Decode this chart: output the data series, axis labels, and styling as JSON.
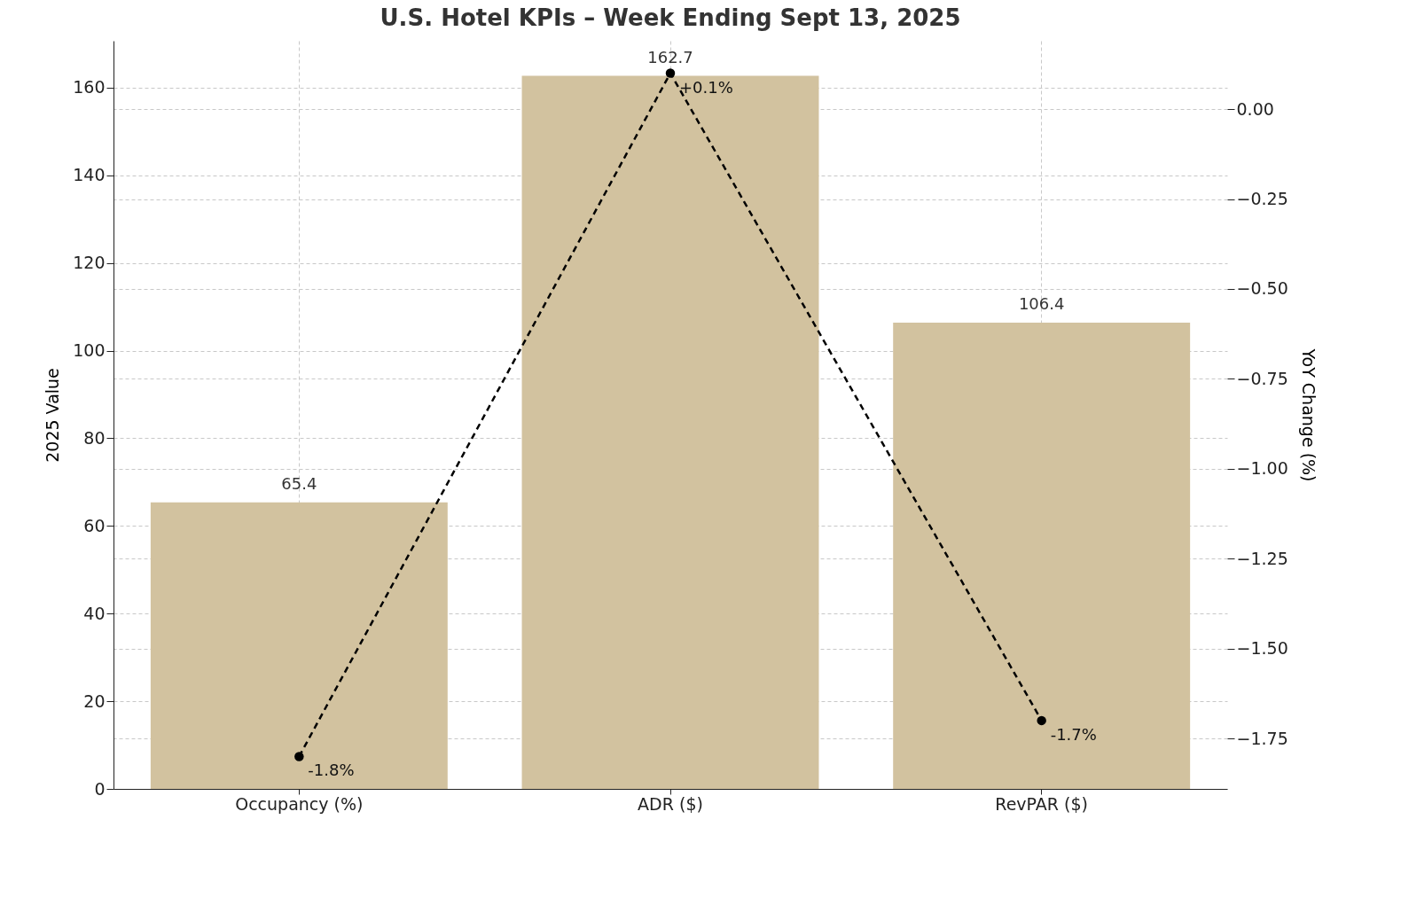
{
  "chart_data": {
    "type": "bar",
    "title": "U.S. Hotel KPIs – Week Ending Sept 13, 2025",
    "ylabel": "2025 Value",
    "y2label": "YoY Change (%)",
    "categories": [
      "Occupancy (%)",
      "ADR ($)",
      "RevPAR ($)"
    ],
    "series": [
      {
        "color": "#d2c29f",
        "values": [
          65.4,
          162.7,
          106.4
        ],
        "value_labels": [
          "65.4",
          "162.7",
          "106.4"
        ]
      },
      {
        "type": "line",
        "axis": "y2",
        "color": "#000000",
        "values": [
          -1.8,
          0.1,
          -1.7
        ],
        "value_labels": [
          "-1.8%",
          "+0.1%",
          "-1.7%"
        ],
        "marker": "circle",
        "line_style": "dashed"
      }
    ],
    "ylim": [
      0,
      170.7
    ],
    "yticks": [
      0,
      20,
      40,
      60,
      80,
      100,
      120,
      140,
      160
    ],
    "y2lim": [
      -1.89,
      0.19
    ],
    "y2ticks": [
      {
        "value": 0,
        "label": "0.00"
      },
      {
        "value": -0.25,
        "label": "−0.25"
      },
      {
        "value": -0.5,
        "label": "−0.50"
      },
      {
        "value": -0.75,
        "label": "−0.75"
      },
      {
        "value": -1,
        "label": "−1.00"
      },
      {
        "value": -1.25,
        "label": "−1.25"
      },
      {
        "value": -1.5,
        "label": "−1.50"
      },
      {
        "value": -1.75,
        "label": "−1.75"
      }
    ],
    "grid": true,
    "legend": false
  }
}
